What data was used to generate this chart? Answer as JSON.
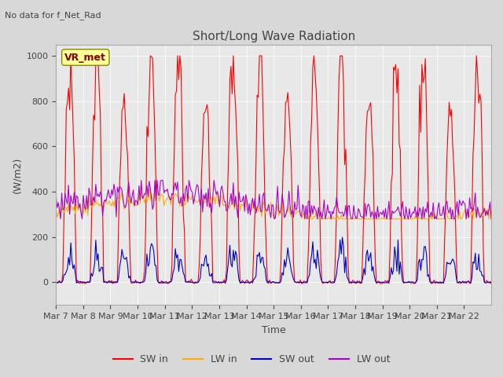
{
  "title": "Short/Long Wave Radiation",
  "subtitle": "No data for f_Net_Rad",
  "xlabel": "Time",
  "ylabel": "(W/m2)",
  "ylim": [
    -100,
    1050
  ],
  "legend_label": "VR_met",
  "x_tick_labels": [
    "Mar 7",
    "Mar 8",
    "Mar 9",
    "Mar 10",
    "Mar 11",
    "Mar 12",
    "Mar 13",
    "Mar 14",
    "Mar 15",
    "Mar 16",
    "Mar 17",
    "Mar 18",
    "Mar 19",
    "Mar 20",
    "Mar 21",
    "Mar 22"
  ],
  "series_labels": [
    "SW in",
    "LW in",
    "SW out",
    "LW out"
  ],
  "series_colors": [
    "#ff0000",
    "#ffaa00",
    "#0000cc",
    "#aa00cc"
  ],
  "fig_facecolor": "#d8d8d8",
  "ax_facecolor": "#e8e8e8"
}
